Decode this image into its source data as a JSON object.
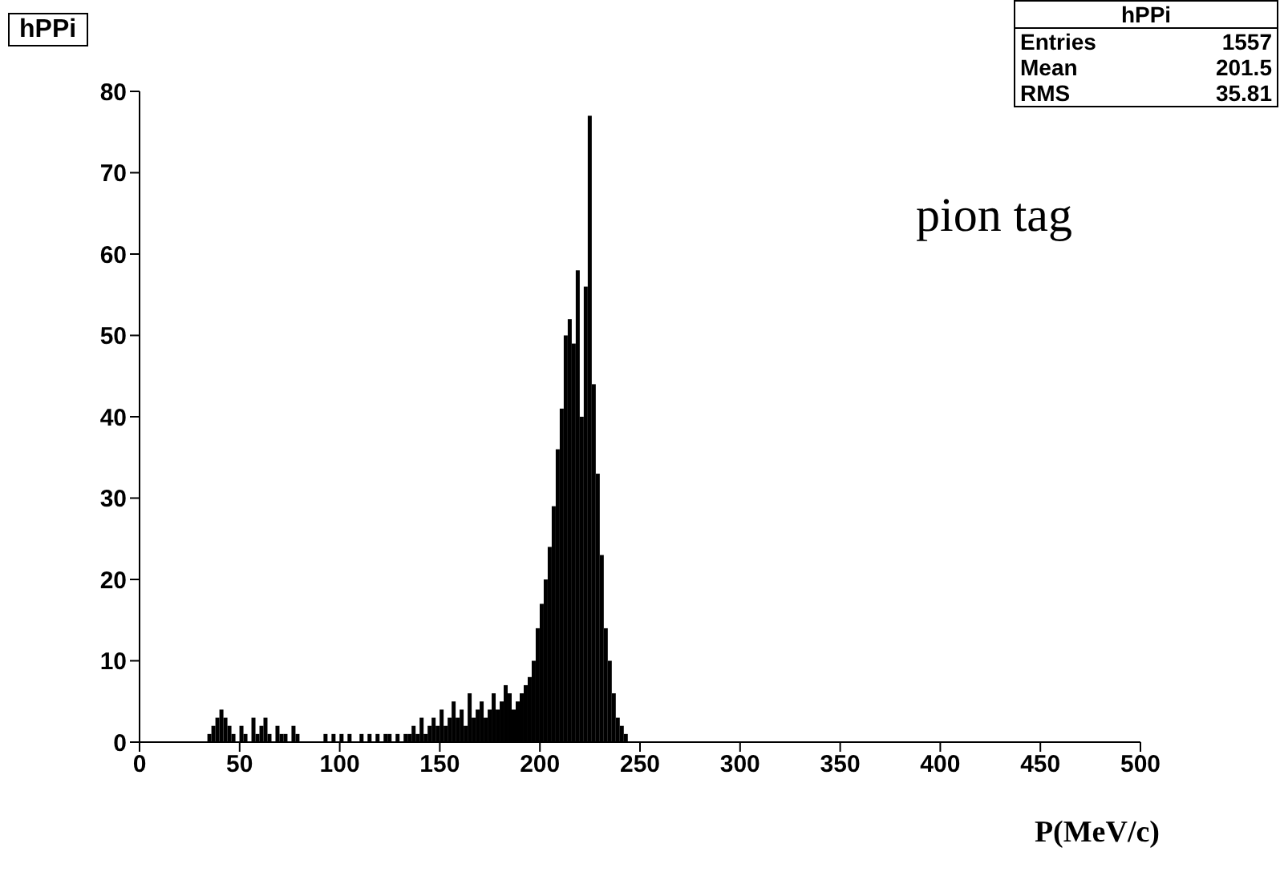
{
  "chart_data": {
    "type": "histogram",
    "title": "hPPi",
    "xlabel": "P(MeV/c)",
    "color": "#000000",
    "annotations": [
      "pion tag",
      "hPPi",
      "Entries",
      "1557",
      "Mean",
      "201.5",
      "RMS",
      "35.81"
    ],
    "bins": [
      34,
      36,
      38,
      40,
      42,
      44,
      46,
      48,
      50,
      52,
      54,
      56,
      58,
      60,
      62,
      64,
      66,
      68,
      70,
      72,
      74,
      76,
      78,
      80,
      92,
      94,
      96,
      98,
      100,
      102,
      104,
      106,
      110,
      112,
      114,
      116,
      118,
      120,
      122,
      124,
      126,
      128,
      130,
      132,
      134,
      136,
      138,
      140,
      142,
      144,
      146,
      148,
      150,
      152,
      154,
      156,
      158,
      160,
      162,
      164,
      166,
      168,
      170,
      172,
      174,
      176,
      178,
      180,
      182,
      184,
      186,
      188,
      190,
      192,
      194,
      196,
      198,
      200,
      202,
      204,
      206,
      208,
      210,
      212,
      214,
      216,
      218,
      220,
      222,
      224,
      226,
      228,
      230,
      232,
      234,
      236,
      238,
      240,
      242,
      244
    ],
    "values": [
      1,
      2,
      3,
      4,
      3,
      2,
      1,
      0,
      2,
      1,
      0,
      3,
      1,
      2,
      3,
      1,
      0,
      2,
      1,
      1,
      0,
      2,
      1,
      0,
      1,
      0,
      1,
      0,
      1,
      0,
      1,
      0,
      1,
      0,
      1,
      0,
      1,
      0,
      1,
      1,
      0,
      1,
      0,
      1,
      1,
      2,
      1,
      3,
      1,
      2,
      3,
      2,
      4,
      2,
      3,
      5,
      3,
      4,
      2,
      6,
      3,
      4,
      5,
      3,
      4,
      6,
      4,
      5,
      7,
      6,
      4,
      5,
      6,
      7,
      8,
      10,
      14,
      17,
      20,
      24,
      29,
      36,
      41,
      50,
      52,
      49,
      58,
      40,
      56,
      77,
      44,
      33,
      23,
      14,
      10,
      6,
      3,
      2,
      1
    ],
    "xlim": [
      0,
      500
    ],
    "xticks": [
      0,
      50,
      100,
      150,
      200,
      250,
      300,
      350,
      400,
      450,
      500
    ],
    "ylim": [
      0,
      80
    ],
    "yticks": [
      0,
      10,
      20,
      30,
      40,
      50,
      60,
      70,
      80
    ],
    "grid": false
  }
}
